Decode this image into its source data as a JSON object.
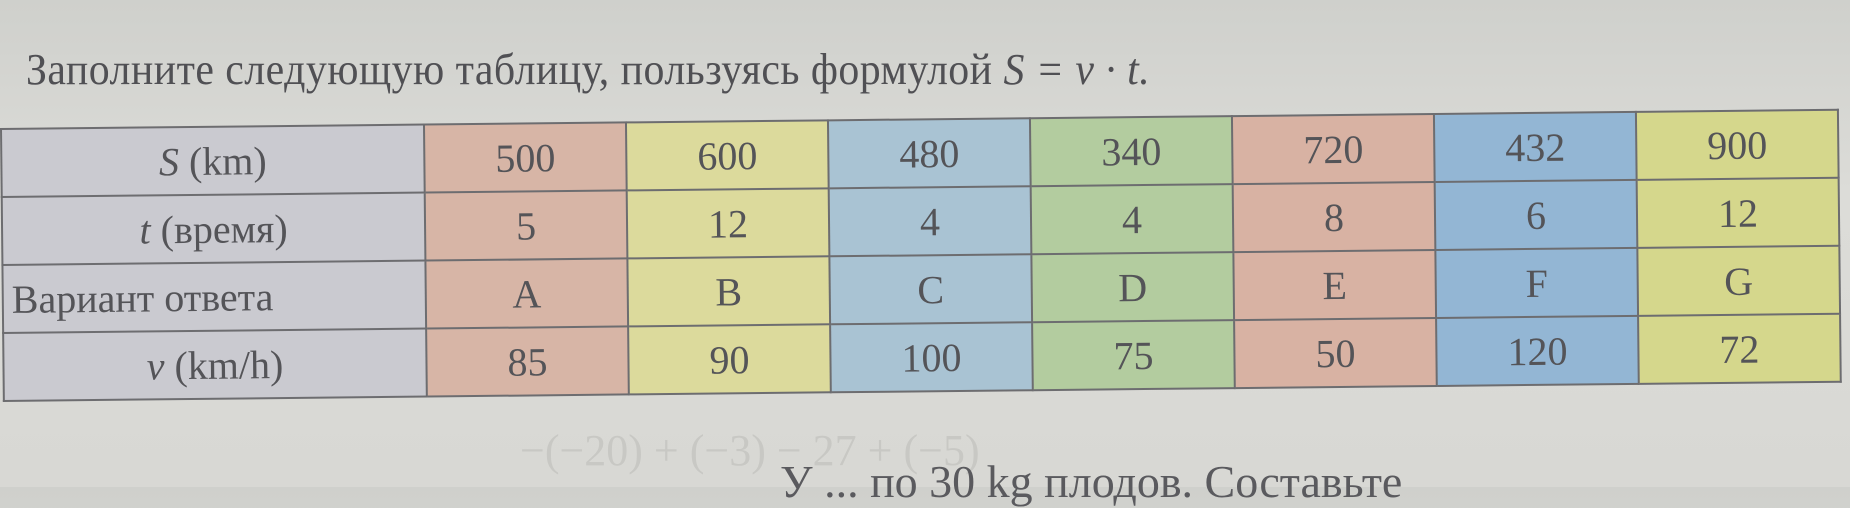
{
  "instruction": {
    "text": "Заполните следующую таблицу, пользуясь формулой",
    "formula": "S = v · t."
  },
  "table": {
    "row_headers": [
      {
        "var": "S",
        "rest": " (km)"
      },
      {
        "var": "t",
        "rest": " (время)"
      },
      {
        "var": "",
        "rest": "Вариант ответа"
      },
      {
        "var": "v",
        "rest": " (km/h)"
      }
    ],
    "columns": [
      {
        "S": "500",
        "t": "5",
        "option": "A",
        "v": "85",
        "color": "#d7b5a6"
      },
      {
        "S": "600",
        "t": "12",
        "option": "B",
        "v": "90",
        "color": "#dcda9c"
      },
      {
        "S": "480",
        "t": "4",
        "option": "C",
        "v": "100",
        "color": "#a9c3d3"
      },
      {
        "S": "340",
        "t": "4",
        "option": "D",
        "v": "75",
        "color": "#b3cc9f"
      },
      {
        "S": "720",
        "t": "8",
        "option": "E",
        "v": "50",
        "color": "#d8b2a3"
      },
      {
        "S": "432",
        "t": "6",
        "option": "F",
        "v": "120",
        "color": "#93b6d4"
      },
      {
        "S": "900",
        "t": "12",
        "option": "G",
        "v": "72",
        "color": "#d5d78c"
      }
    ]
  },
  "bleed_through": "−(−20) + (−3) − 27 + (−5)",
  "next_text": "У ... по 30 kg плодов. Составьте"
}
